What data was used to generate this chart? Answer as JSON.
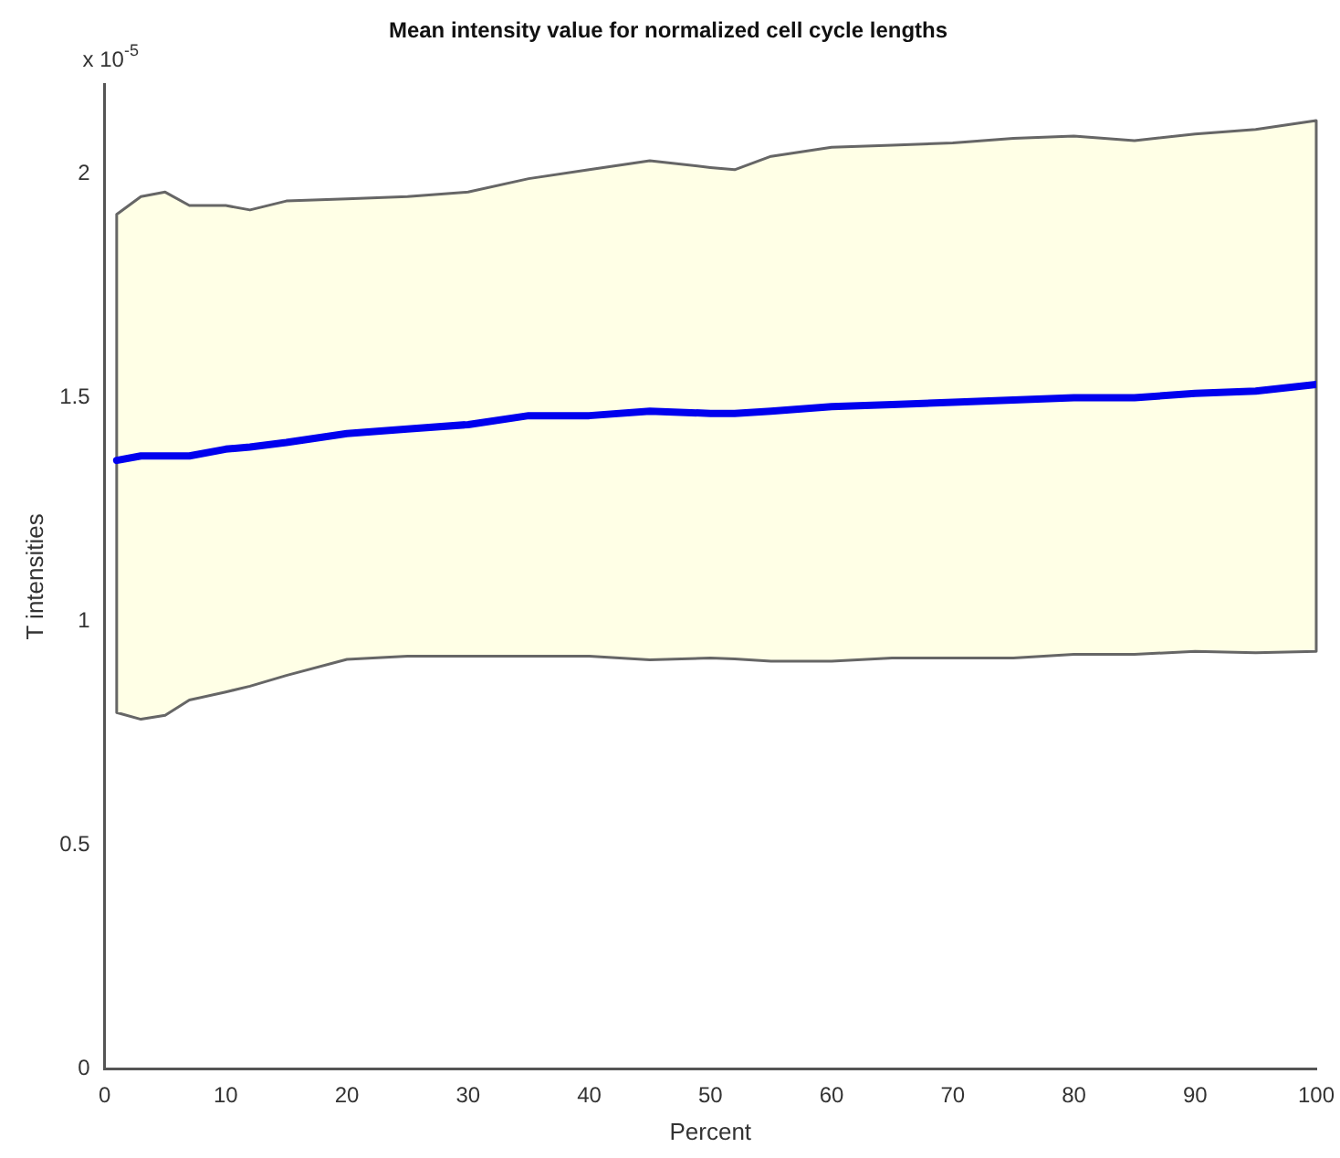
{
  "chart_data": {
    "type": "line",
    "title": "Mean intensity value for normalized cell cycle lengths",
    "xlabel": "Percent",
    "ylabel": "T intensities",
    "annotations": [
      "x 10$^{-5}$"
    ],
    "xlim": [
      0,
      100
    ],
    "xticks": [
      0,
      10,
      20,
      30,
      40,
      50,
      60,
      70,
      80,
      90,
      100
    ],
    "ylim": [
      0,
      2.2
    ],
    "yticks": [
      0,
      0.5,
      1,
      1.5,
      2
    ],
    "grid": false,
    "legend": false,
    "marker": "none",
    "line_style": "solid",
    "series": [
      {
        "color": "#0000ee",
        "x": [
          1,
          3,
          5,
          7,
          10,
          12,
          15,
          20,
          25,
          30,
          35,
          40,
          45,
          50,
          52,
          55,
          60,
          65,
          70,
          75,
          80,
          85,
          90,
          95,
          100
        ],
        "values": [
          1.36,
          1.37,
          1.37,
          1.37,
          1.385,
          1.39,
          1.4,
          1.42,
          1.43,
          1.44,
          1.46,
          1.46,
          1.47,
          1.465,
          1.465,
          1.47,
          1.48,
          1.485,
          1.49,
          1.495,
          1.5,
          1.5,
          1.51,
          1.515,
          1.53
        ],
        "lower": [
          0.796,
          0.781,
          0.79,
          0.824,
          0.842,
          0.855,
          0.879,
          0.915,
          0.922,
          0.922,
          0.922,
          0.922,
          0.914,
          0.918,
          0.916,
          0.911,
          0.911,
          0.918,
          0.918,
          0.918,
          0.926,
          0.926,
          0.933,
          0.93,
          0.933
        ],
        "upper": [
          1.91,
          1.95,
          1.96,
          1.93,
          1.93,
          1.92,
          1.94,
          1.945,
          1.95,
          1.96,
          1.99,
          2.01,
          2.03,
          2.015,
          2.01,
          2.04,
          2.06,
          2.065,
          2.07,
          2.08,
          2.085,
          2.075,
          2.09,
          2.1,
          2.12
        ]
      }
    ]
  }
}
